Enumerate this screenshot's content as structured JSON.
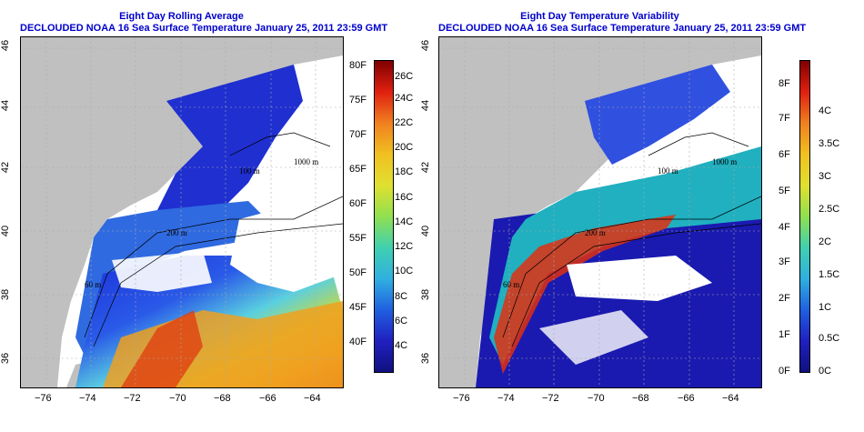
{
  "left_map": {
    "title_line1": "Eight Day Rolling Average",
    "title_line2": "DECLOUDED NOAA 16 Sea Surface Temperature January 25, 2011 23:59 GMT",
    "depth_labels": [
      "100 m",
      "200 m",
      "1000 m",
      "60 m"
    ],
    "colorbar_f_labels": [
      "80F",
      "75F",
      "70F",
      "65F",
      "60F",
      "55F",
      "50F",
      "45F",
      "40F"
    ],
    "colorbar_c_labels": [
      "26C",
      "24C",
      "22C",
      "20C",
      "18C",
      "16C",
      "14C",
      "12C",
      "10C",
      "8C",
      "6C",
      "4C"
    ]
  },
  "right_map": {
    "title_line1": "Eight Day Temperature Variability",
    "title_line2": "DECLOUDED NOAA 16 Sea Surface Temperature January 25, 2011 23:59 GMT",
    "depth_labels": [
      "100 m",
      "200 m",
      "1000 m",
      "60 m"
    ],
    "colorbar_f_labels": [
      "8F",
      "7F",
      "6F",
      "5F",
      "4F",
      "3F",
      "2F",
      "1F",
      "0F"
    ],
    "colorbar_c_labels": [
      "4C",
      "3.5C",
      "3C",
      "2.5C",
      "2C",
      "1.5C",
      "1C",
      "0.5C",
      "0C"
    ]
  },
  "axes": {
    "lon_labels": [
      "−76",
      "−74",
      "−72",
      "−70",
      "−68",
      "−66",
      "−64"
    ],
    "lat_labels": [
      "36",
      "38",
      "40",
      "42",
      "44",
      "46"
    ]
  },
  "colors": {
    "land": "#c0c0c0",
    "title": "#0000cc",
    "cold": "#1010b0",
    "warm": "#d02010"
  }
}
